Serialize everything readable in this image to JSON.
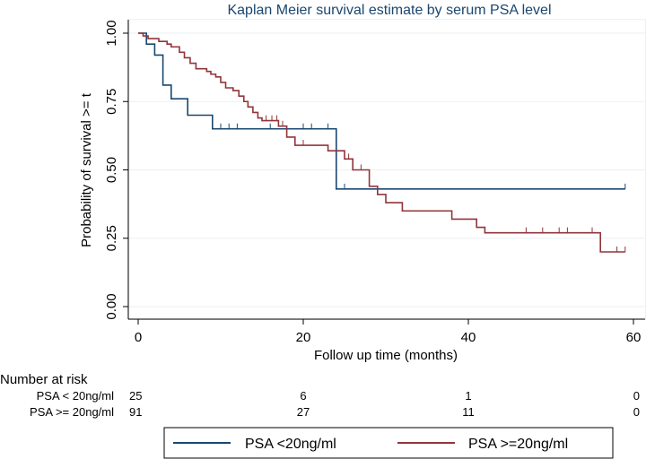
{
  "chart_data": {
    "type": "line",
    "title": "Kaplan Meier survival estimate by serum PSA level",
    "xlabel": "Follow up time (months)",
    "ylabel": "Probability of survival >= t",
    "xlim": [
      0,
      60
    ],
    "ylim": [
      0,
      1
    ],
    "x_ticks": [
      "0",
      "20",
      "40",
      "60"
    ],
    "x_tick_values": [
      0,
      20,
      40,
      60
    ],
    "y_ticks": [
      "0.00",
      "0.25",
      "0.50",
      "0.75",
      "1.00"
    ],
    "y_tick_values": [
      0,
      0.25,
      0.5,
      0.75,
      1.0
    ],
    "colors": {
      "low": "#1a476f",
      "high": "#90353b",
      "grid": "#eaf2f3"
    },
    "series": [
      {
        "name": "PSA  <20ng/ml",
        "steps": [
          [
            0,
            1.0
          ],
          [
            1,
            0.96
          ],
          [
            2,
            0.92
          ],
          [
            3,
            0.81
          ],
          [
            4,
            0.76
          ],
          [
            6,
            0.7
          ],
          [
            9,
            0.65
          ],
          [
            24,
            0.43
          ],
          [
            59,
            0.43
          ]
        ],
        "censor_times": [
          10,
          11,
          12,
          16,
          20,
          21,
          23,
          25,
          59
        ]
      },
      {
        "name": "PSA  >=20ng/ml",
        "steps": [
          [
            0,
            1.0
          ],
          [
            0.6,
            0.99
          ],
          [
            1.2,
            0.98
          ],
          [
            2.5,
            0.97
          ],
          [
            3.5,
            0.96
          ],
          [
            4,
            0.95
          ],
          [
            5,
            0.93
          ],
          [
            5.6,
            0.91
          ],
          [
            6.3,
            0.89
          ],
          [
            7,
            0.87
          ],
          [
            8.3,
            0.86
          ],
          [
            8.8,
            0.85
          ],
          [
            9.4,
            0.84
          ],
          [
            10,
            0.82
          ],
          [
            10.6,
            0.8
          ],
          [
            11.5,
            0.79
          ],
          [
            12.2,
            0.77
          ],
          [
            12.8,
            0.75
          ],
          [
            13.3,
            0.73
          ],
          [
            13.9,
            0.71
          ],
          [
            14.5,
            0.69
          ],
          [
            15,
            0.68
          ],
          [
            17,
            0.66
          ],
          [
            18,
            0.62
          ],
          [
            19,
            0.59
          ],
          [
            23,
            0.57
          ],
          [
            25,
            0.54
          ],
          [
            26,
            0.5
          ],
          [
            28,
            0.44
          ],
          [
            29,
            0.41
          ],
          [
            30,
            0.38
          ],
          [
            32,
            0.35
          ],
          [
            38,
            0.32
          ],
          [
            41,
            0.29
          ],
          [
            42,
            0.27
          ],
          [
            56,
            0.2
          ],
          [
            59,
            0.2
          ]
        ],
        "censor_times": [
          15.5,
          16.2,
          16.8,
          17.5,
          20,
          25.5,
          27,
          47,
          49,
          51,
          52,
          55,
          58,
          59
        ]
      }
    ],
    "legend": {
      "position": "bottom",
      "entries": [
        "PSA  <20ng/ml",
        "PSA  >=20ng/ml"
      ]
    }
  },
  "risk_table": {
    "title": "Number at risk",
    "rows": [
      {
        "label": "PSA < 20ng/ml",
        "values": [
          "25",
          "6",
          "1",
          "0"
        ]
      },
      {
        "label": "PSA >= 20ng/ml",
        "values": [
          "91",
          "27",
          "11",
          "0"
        ]
      }
    ]
  }
}
